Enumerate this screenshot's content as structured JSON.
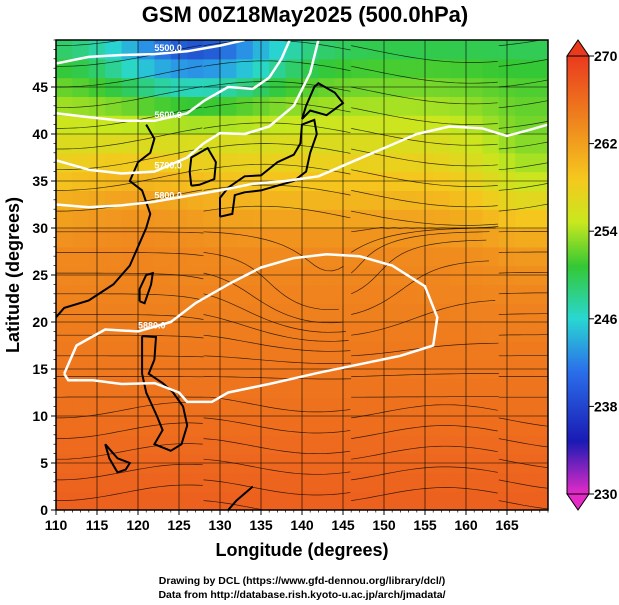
{
  "chart_data": {
    "type": "heatmap",
    "title": "GSM 00Z18May2025 (500.0hPa)",
    "xlabel": "Longitude (degrees)",
    "ylabel": "Latitude  (degrees)",
    "xlim": [
      110,
      170
    ],
    "ylim": [
      0,
      50
    ],
    "x_ticks": [
      "110",
      "115",
      "120",
      "125",
      "130",
      "135",
      "140",
      "145",
      "150",
      "155",
      "160",
      "165"
    ],
    "y_ticks": [
      "0",
      "5",
      "10",
      "15",
      "20",
      "25",
      "30",
      "35",
      "40",
      "45"
    ],
    "grid": true,
    "colorbar": {
      "min": 230,
      "max": 270,
      "ticks": [
        "230",
        "238",
        "246",
        "254",
        "262",
        "270"
      ],
      "colors": [
        "#e52bc7",
        "#1a1ab4",
        "#2a86ea",
        "#29d7d1",
        "#34c834",
        "#c8e81e",
        "#f5c81e",
        "#f08a1e",
        "#ea3a1e"
      ]
    },
    "contours": [
      {
        "level": "5500.0",
        "label": "5500.0",
        "points": [
          [
            110,
            47.5
          ],
          [
            114,
            48.2
          ],
          [
            118,
            48.4
          ],
          [
            122,
            48.5
          ],
          [
            126,
            48.8
          ],
          [
            130,
            49.4
          ],
          [
            133,
            50
          ]
        ]
      },
      {
        "level": "5600.0",
        "label": "5600.0",
        "points": [
          [
            110,
            42.2
          ],
          [
            114,
            41.8
          ],
          [
            118,
            41.4
          ],
          [
            122,
            41.4
          ],
          [
            126,
            42.2
          ],
          [
            128,
            43.5
          ],
          [
            131,
            45
          ],
          [
            134,
            44.8
          ],
          [
            136,
            46
          ],
          [
            137.5,
            48
          ],
          [
            138.5,
            50
          ]
        ]
      },
      {
        "level": "5700.0",
        "label": "5700.0",
        "points": [
          [
            110,
            37.2
          ],
          [
            114,
            36.2
          ],
          [
            118,
            35.8
          ],
          [
            122,
            36
          ],
          [
            126,
            37.5
          ],
          [
            128,
            39
          ],
          [
            130,
            40.1
          ],
          [
            133,
            40
          ],
          [
            136,
            40.8
          ],
          [
            139,
            43
          ],
          [
            141,
            46.5
          ],
          [
            142,
            50
          ]
        ]
      },
      {
        "level": "5800.0",
        "label": "5800.0",
        "points": [
          [
            110,
            32.5
          ],
          [
            114,
            32.2
          ],
          [
            118,
            32.4
          ],
          [
            122,
            32.8
          ],
          [
            126,
            33.4
          ],
          [
            130,
            34
          ],
          [
            134,
            34.7
          ],
          [
            138,
            35
          ],
          [
            142,
            35.5
          ],
          [
            146,
            37
          ],
          [
            150,
            38.5
          ],
          [
            154,
            40
          ],
          [
            158,
            40.8
          ],
          [
            162,
            40.6
          ],
          [
            165,
            39.8
          ],
          [
            168,
            40.5
          ],
          [
            170,
            41
          ]
        ]
      },
      {
        "level": "5880.0",
        "label": "5880.0",
        "points": [
          [
            111,
            14.5
          ],
          [
            112.5,
            17.5
          ],
          [
            116,
            19.2
          ],
          [
            120,
            19
          ],
          [
            124,
            20
          ],
          [
            127,
            22
          ],
          [
            131,
            24
          ],
          [
            135,
            25.8
          ],
          [
            139,
            26.8
          ],
          [
            143,
            27.2
          ],
          [
            147,
            27
          ],
          [
            151,
            26
          ],
          [
            155,
            23.8
          ],
          [
            156.5,
            20.5
          ],
          [
            156,
            17.5
          ],
          [
            152,
            16.4
          ],
          [
            147,
            15.5
          ],
          [
            142,
            14.6
          ],
          [
            136,
            13.4
          ],
          [
            131,
            12.5
          ],
          [
            129,
            11.5
          ],
          [
            126,
            11.5
          ],
          [
            125,
            12.5
          ],
          [
            122,
            13.5
          ],
          [
            118,
            13.4
          ],
          [
            114.5,
            13.8
          ],
          [
            111.5,
            13.8
          ],
          [
            111,
            14.5
          ]
        ]
      }
    ]
  },
  "credits": {
    "line1": "Drawing by DCL (https://www.gfd-dennou.org/library/dcl/)",
    "line2": "Data from http://database.rish.kyoto-u.ac.jp/arch/jmadata/"
  }
}
